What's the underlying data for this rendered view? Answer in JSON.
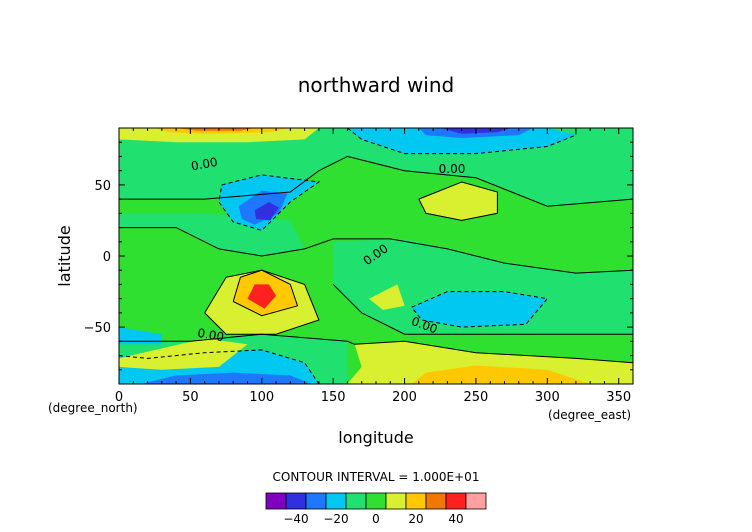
{
  "chart_data": {
    "type": "heatmap",
    "title": "northward wind",
    "xlabel": "longitude",
    "ylabel": "latitude",
    "x_unit": "(degree_east)",
    "y_unit": "(degree_north)",
    "xlim": [
      0,
      360
    ],
    "ylim": [
      -90,
      90
    ],
    "x_ticks": [
      0,
      50,
      100,
      150,
      200,
      250,
      300,
      350
    ],
    "y_ticks": [
      -50,
      0,
      50
    ],
    "contour_interval_text": "CONTOUR INTERVAL = 1.000E+01",
    "contour_label": "0.00",
    "colorbar": {
      "levels": [
        -50,
        -40,
        -30,
        -20,
        -10,
        0,
        10,
        20,
        30,
        40,
        50
      ],
      "tick_labels": [
        "−40",
        "−20",
        "0",
        "20",
        "40"
      ],
      "tick_values": [
        -40,
        -20,
        0,
        20,
        40
      ],
      "colors": [
        "#8000c0",
        "#3030e0",
        "#1e78ff",
        "#00c8f0",
        "#20e070",
        "#30e030",
        "#d8f030",
        "#ffc800",
        "#f07800",
        "#ff2020",
        "#ffa0a0"
      ]
    },
    "features": [
      {
        "name": "negative extreme",
        "lon": 105,
        "lat": 30,
        "value": -35
      },
      {
        "name": "positive extreme",
        "lon": 100,
        "lat": -28,
        "value": 35
      },
      {
        "name": "positive band",
        "lon": 250,
        "lat": -87,
        "value": 30
      },
      {
        "name": "negative band",
        "lon": 245,
        "lat": 88,
        "value": -30
      },
      {
        "name": "positive band",
        "lon": 60,
        "lat": 88,
        "value": 30
      },
      {
        "name": "negative band",
        "lon": 60,
        "lat": -88,
        "value": -30
      },
      {
        "name": "positive pocket",
        "lon": 240,
        "lat": 37,
        "value": 12
      },
      {
        "name": "negative pocket",
        "lon": 250,
        "lat": -36,
        "value": -12
      }
    ]
  }
}
